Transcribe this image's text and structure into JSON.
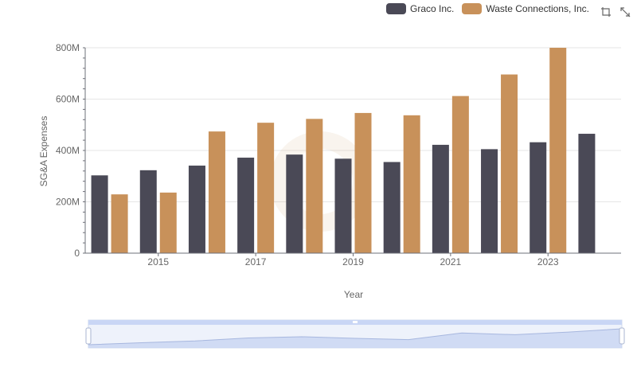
{
  "legend": {
    "items": [
      {
        "label": "Graco Inc.",
        "color": "#4a4956"
      },
      {
        "label": "Waste Connections, Inc.",
        "color": "#c8915a"
      }
    ]
  },
  "toolbox": {
    "icons": [
      "zoom-icon",
      "restore-icon"
    ]
  },
  "chart_data": {
    "type": "bar",
    "x": [
      2014,
      2015,
      2016,
      2017,
      2018,
      2019,
      2020,
      2021,
      2022,
      2023,
      2024
    ],
    "x_tick_labels": [
      "2015",
      "2017",
      "2019",
      "2021",
      "2023"
    ],
    "xlabel": "Year",
    "ylabel": "SG&A Expenses",
    "y_tick_labels": [
      "0",
      "200M",
      "400M",
      "600M",
      "800M"
    ],
    "ylim": [
      0,
      800000000
    ],
    "grid": true,
    "legend_position": "top-right",
    "series": [
      {
        "name": "Graco Inc.",
        "color": "#4a4956",
        "values": [
          303000000,
          323000000,
          341000000,
          372000000,
          384000000,
          368000000,
          355000000,
          422000000,
          405000000,
          432000000,
          465000000
        ]
      },
      {
        "name": "Waste Connections, Inc.",
        "color": "#c8915a",
        "values": [
          229000000,
          236000000,
          474000000,
          508000000,
          523000000,
          546000000,
          537000000,
          612000000,
          696000000,
          800000000,
          null
        ]
      }
    ],
    "data_zoom": {
      "start_percent": 0,
      "end_percent": 100
    }
  }
}
